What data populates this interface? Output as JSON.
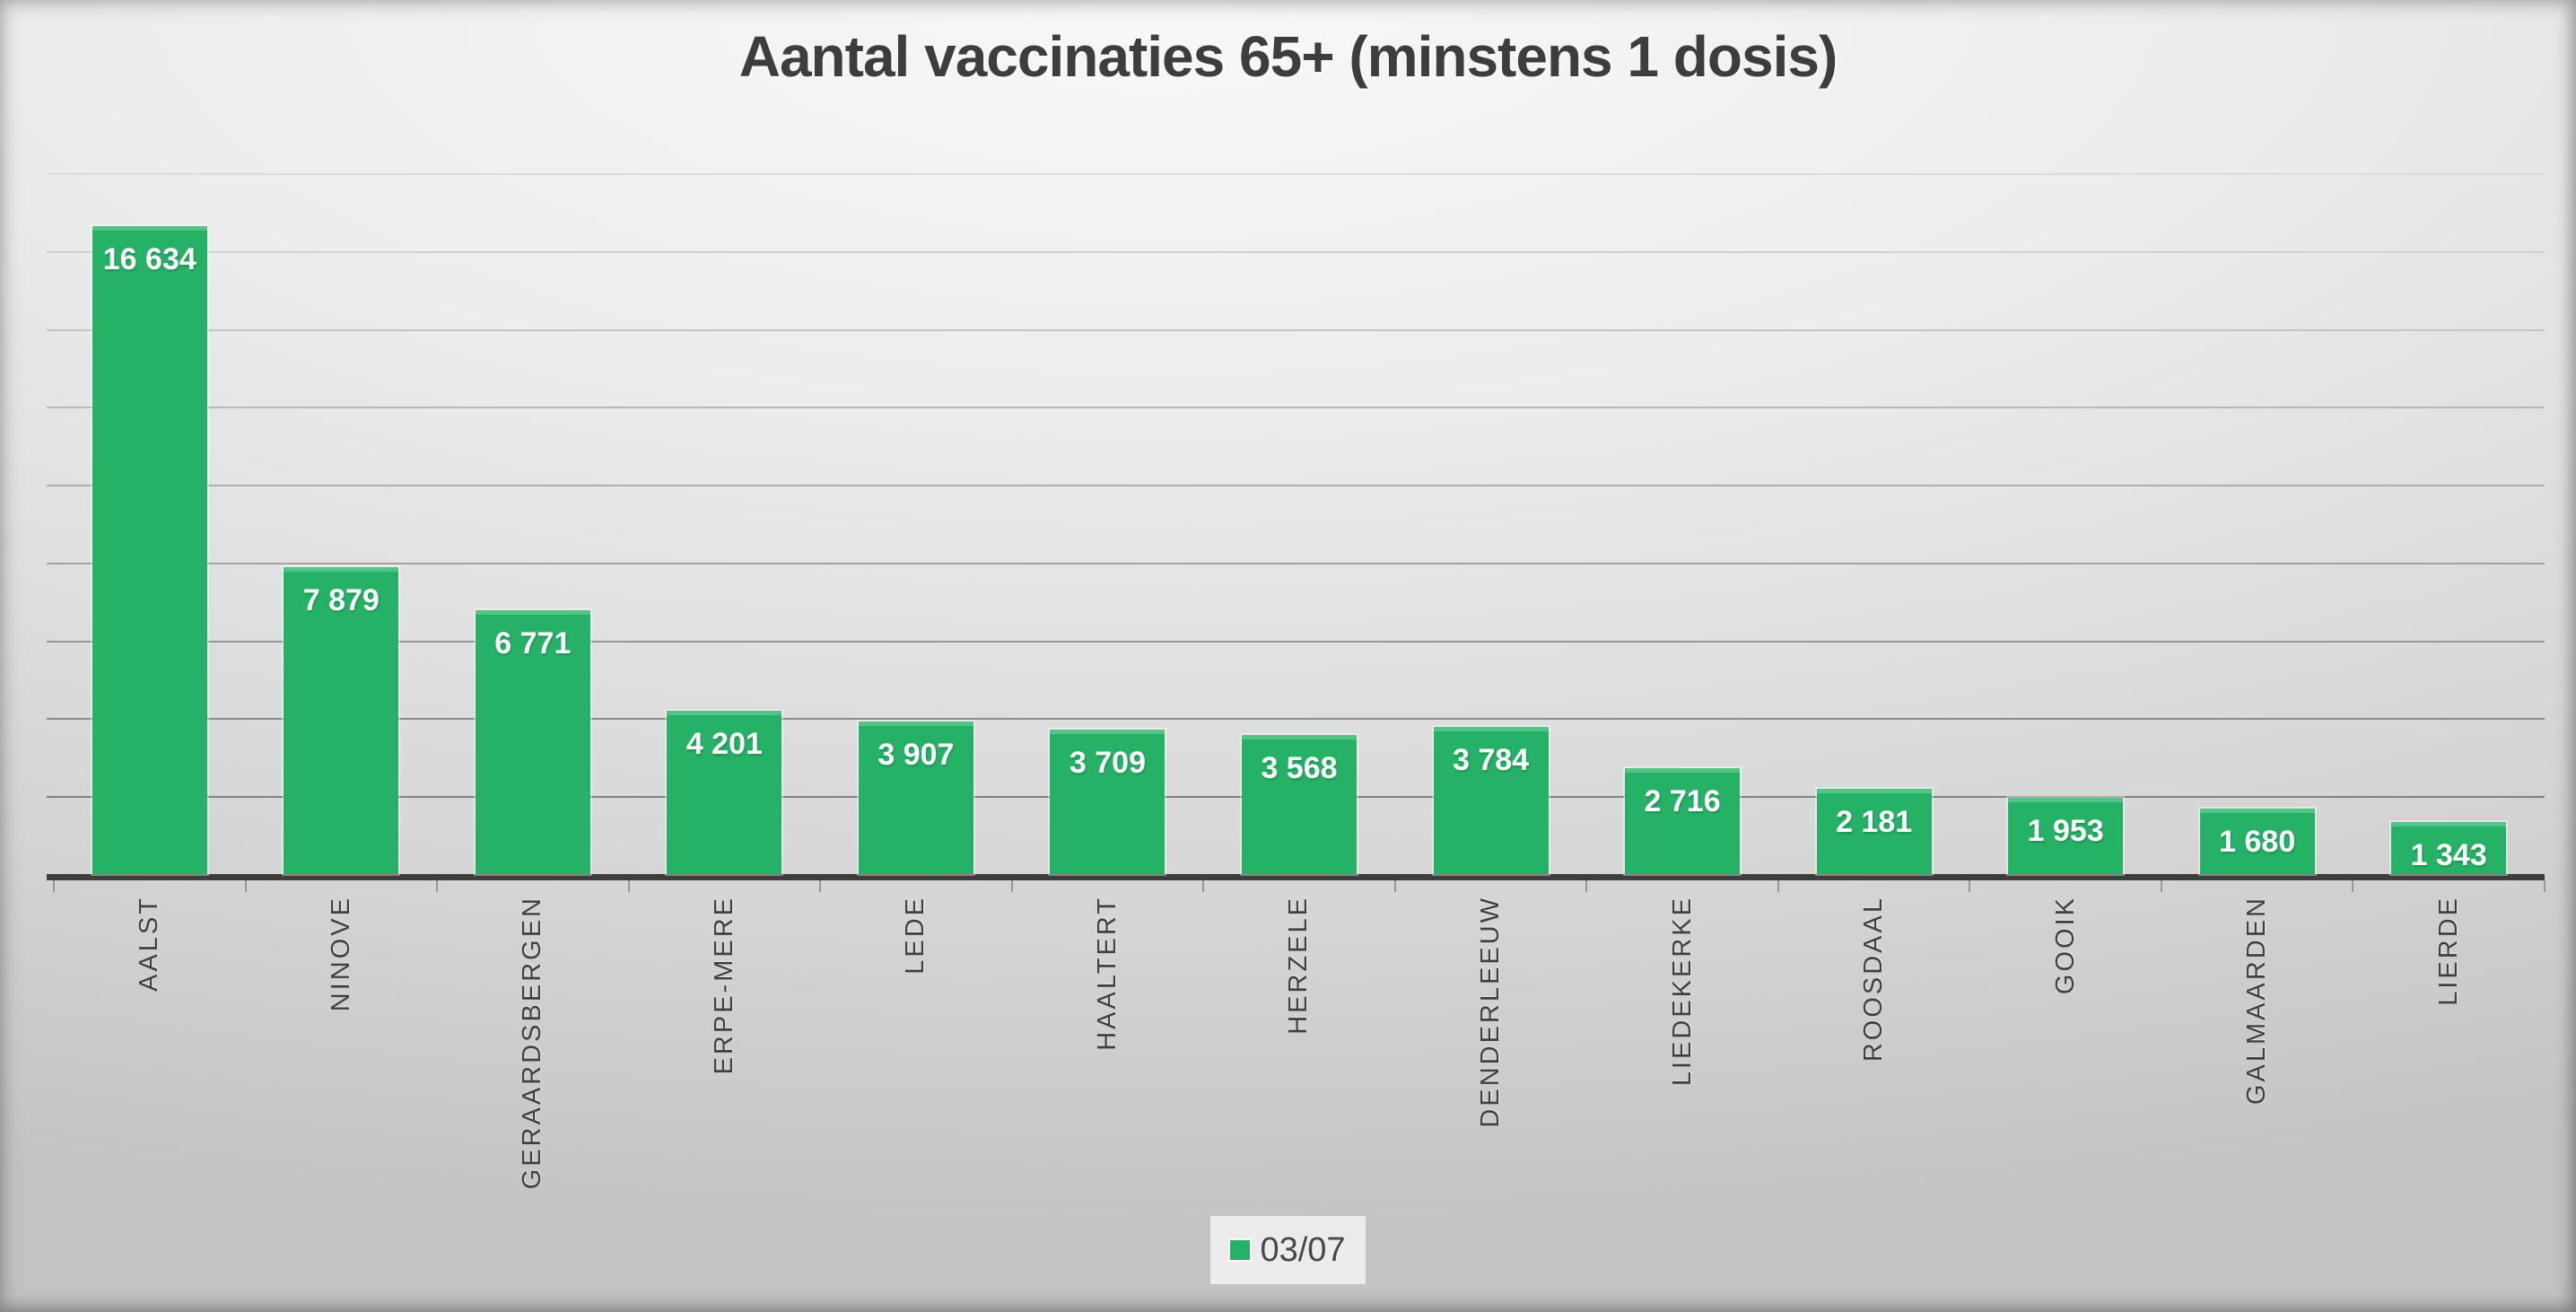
{
  "title": "Aantal vaccinaties 65+ (minstens 1 dosis)",
  "legend": {
    "label": "03/07"
  },
  "colors": {
    "bar": "#25b266",
    "axis": "#3d3d3d",
    "title_text": "#3d3d3d",
    "category_text": "#404040",
    "value_label_text": "#ffffff",
    "legend_bg": "#ececec"
  },
  "chart_data": {
    "type": "bar",
    "title": "Aantal vaccinaties 65+ (minstens 1 dosis)",
    "categories": [
      "AALST",
      "NINOVE",
      "GERAARDSBERGEN",
      "ERPE-MERE",
      "LEDE",
      "HAALTERT",
      "HERZELE",
      "DENDERLEEUW",
      "LIEDEKERKE",
      "ROOSDAAL",
      "GOOIK",
      "GALMAARDEN",
      "LIERDE"
    ],
    "series": [
      {
        "name": "03/07",
        "values": [
          16634,
          7879,
          6771,
          4201,
          3907,
          3709,
          3568,
          3784,
          2716,
          2181,
          1953,
          1680,
          1343
        ]
      }
    ],
    "value_labels": [
      "16 634",
      "7 879",
      "6 771",
      "4 201",
      "3 907",
      "3 709",
      "3 568",
      "3 784",
      "2 716",
      "2 181",
      "1 953",
      "1 680",
      "1 343"
    ],
    "xlabel": "",
    "ylabel": "",
    "ylim": [
      0,
      18000
    ],
    "gridline_step": 2000,
    "grid": true,
    "category_label_rotation": "bottom-to-top",
    "legend_position": "bottom-center"
  }
}
